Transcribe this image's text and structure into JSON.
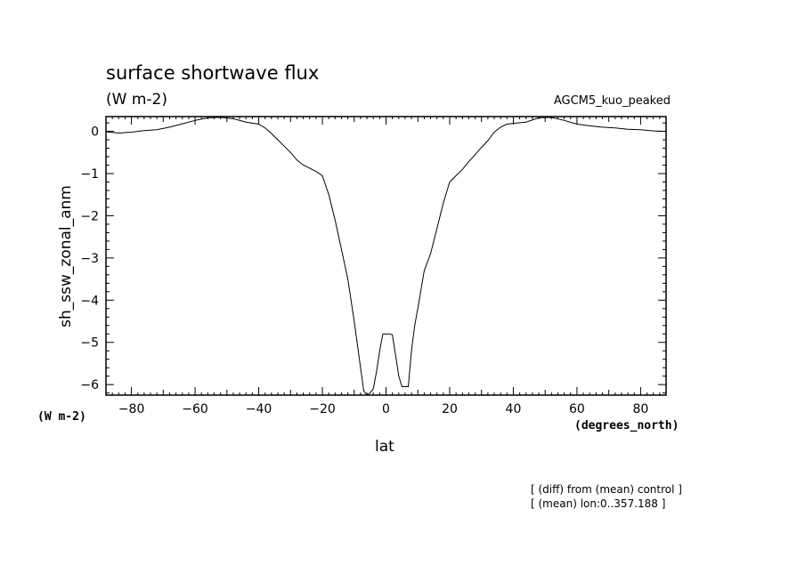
{
  "chart_data": {
    "type": "line",
    "title": "surface shortwave flux",
    "units": "(W m-2)",
    "run_label": "AGCM5_kuo_peaked",
    "xlabel": "lat",
    "ylabel": "sh_ssw_zonal_anm",
    "x_units": "(degrees_north)",
    "y_units": "(W m-2)",
    "xlim": [
      -88,
      88
    ],
    "ylim": [
      -6.25,
      0.35
    ],
    "x_ticks": [
      "-80",
      "-60",
      "-40",
      "-20",
      "0",
      "20",
      "40",
      "60",
      "80"
    ],
    "y_ticks": [
      "0",
      "-1",
      "-2",
      "-3",
      "-4",
      "-5",
      "-6"
    ],
    "grid": false,
    "series": [
      {
        "x": [
          -88,
          -84,
          -80,
          -76,
          -72,
          -68,
          -64,
          -60,
          -56,
          -52,
          -48,
          -44,
          -40,
          -38,
          -36,
          -34,
          -32,
          -30,
          -28,
          -26,
          -24,
          -22,
          -20,
          -18,
          -16,
          -14,
          -12,
          -10,
          -8,
          -7,
          -6,
          -5,
          -4,
          -3,
          -2,
          -1,
          0,
          1,
          2,
          3,
          4,
          5,
          6,
          7,
          8,
          9,
          10,
          12,
          14,
          16,
          18,
          20,
          22,
          24,
          26,
          28,
          30,
          32,
          34,
          36,
          38,
          40,
          44,
          48,
          52,
          56,
          60,
          64,
          68,
          72,
          76,
          80,
          84,
          88
        ],
        "y": [
          -0.01,
          -0.04,
          -0.02,
          0.02,
          0.04,
          0.1,
          0.18,
          0.26,
          0.32,
          0.33,
          0.3,
          0.22,
          0.17,
          0.08,
          -0.05,
          -0.2,
          -0.35,
          -0.5,
          -0.68,
          -0.8,
          -0.87,
          -0.95,
          -1.05,
          -1.5,
          -2.1,
          -2.8,
          -3.5,
          -4.5,
          -5.6,
          -6.15,
          -6.25,
          -6.2,
          -6.1,
          -5.7,
          -5.2,
          -4.8,
          -4.8,
          -4.8,
          -4.82,
          -5.3,
          -5.8,
          -6.05,
          -6.05,
          -6.05,
          -5.2,
          -4.6,
          -4.2,
          -3.3,
          -2.9,
          -2.3,
          -1.7,
          -1.2,
          -1.05,
          -0.9,
          -0.72,
          -0.55,
          -0.38,
          -0.22,
          -0.02,
          0.1,
          0.17,
          0.19,
          0.22,
          0.32,
          0.33,
          0.26,
          0.17,
          0.13,
          0.1,
          0.08,
          0.05,
          0.04,
          0.01,
          0.0
        ]
      }
    ]
  },
  "footnotes": {
    "line1": "[ (diff) from (mean) control ]",
    "line2": "[ (mean) lon:0..357.188 ]"
  }
}
